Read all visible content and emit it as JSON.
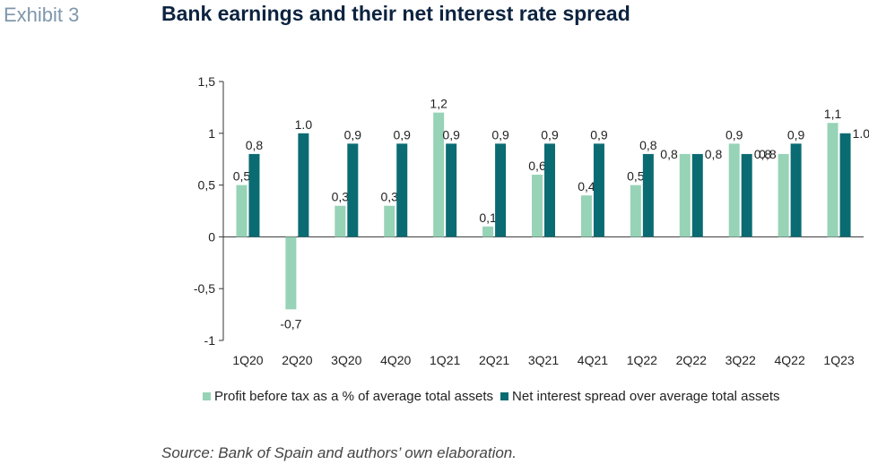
{
  "header": {
    "exhibit": "Exhibit 3",
    "title": "Bank earnings and their net interest rate spread"
  },
  "source": "Source: Bank of Spain and authors’ own elaboration.",
  "colors": {
    "profit": "#97d3b6",
    "spread": "#0b6b72",
    "axis": "#333333"
  },
  "chart_data": {
    "type": "bar",
    "categories": [
      "1Q20",
      "2Q20",
      "3Q20",
      "4Q20",
      "1Q21",
      "2Q21",
      "3Q21",
      "4Q21",
      "1Q22",
      "2Q22",
      "3Q22",
      "4Q22",
      "1Q23"
    ],
    "series": [
      {
        "name": "Profit before tax as a % of average total assets",
        "values": [
          0.5,
          -0.7,
          0.3,
          0.3,
          1.2,
          0.1,
          0.6,
          0.4,
          0.5,
          0.8,
          0.9,
          0.8,
          1.1
        ],
        "labels": [
          "0,5",
          "-0,7",
          "0,3",
          "0,3",
          "1,2",
          "0,1",
          "0,6",
          "0,4",
          "0,5",
          "0,8",
          "0,9",
          "0,8",
          "1,1"
        ]
      },
      {
        "name": "Net interest spread over average total assets",
        "values": [
          0.8,
          1.0,
          0.9,
          0.9,
          0.9,
          0.9,
          0.9,
          0.9,
          0.8,
          0.8,
          0.8,
          0.9,
          1.0
        ],
        "labels": [
          "0,8",
          "1.0",
          "0,9",
          "0,9",
          "0,9",
          "0,9",
          "0,9",
          "0,9",
          "0,8",
          "0,8",
          "0,8",
          "0,9",
          "1.0"
        ]
      }
    ],
    "yticks": [
      1.5,
      1,
      0.5,
      0,
      -0.5,
      -1
    ],
    "ytick_labels": [
      "1,5",
      "1",
      "0,5",
      "0",
      "-0,5",
      "-1"
    ],
    "ylim": [
      -1,
      1.5
    ],
    "grid": false,
    "legend_position": "bottom"
  }
}
